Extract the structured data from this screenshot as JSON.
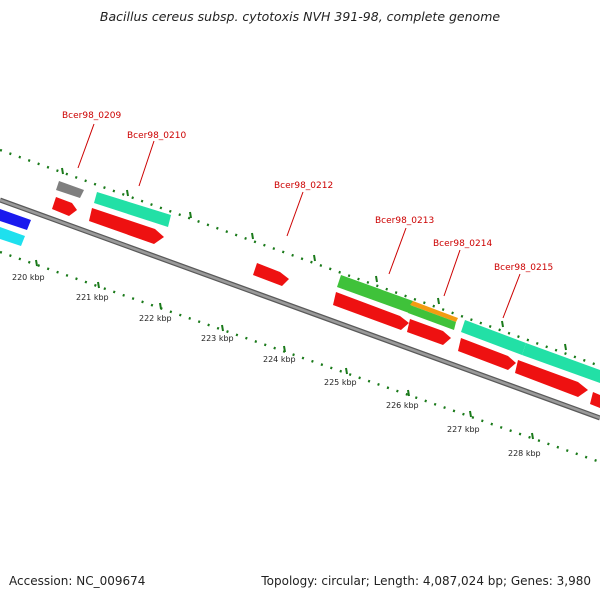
{
  "title": "Bacillus cereus subsp. cytotoxis NVH 391-98, complete genome",
  "footer": {
    "accession": "Accession: NC_009674",
    "stats": "Topology: circular; Length: 4,087,024 bp; Genes: 3,980"
  },
  "gene_labels": [
    "Bcer98_0209",
    "Bcer98_0210",
    "Bcer98_0212",
    "Bcer98_0213",
    "Bcer98_0214",
    "Bcer98_0215"
  ],
  "kbp_labels": [
    "220 kbp",
    "221 kbp",
    "222 kbp",
    "223 kbp",
    "224 kbp",
    "225 kbp",
    "226 kbp",
    "227 kbp",
    "228 kbp"
  ],
  "colors": {
    "backbone": "#888888",
    "cds": "#ee1111",
    "teal": "#22e0a6",
    "green": "#3fc23a",
    "orange": "#f39c12",
    "gray": "#7f7f7f",
    "cyan": "#1ee0ee",
    "blue": "#1a1aee",
    "tick": "#1a7a1a",
    "label": "#cc0000"
  }
}
